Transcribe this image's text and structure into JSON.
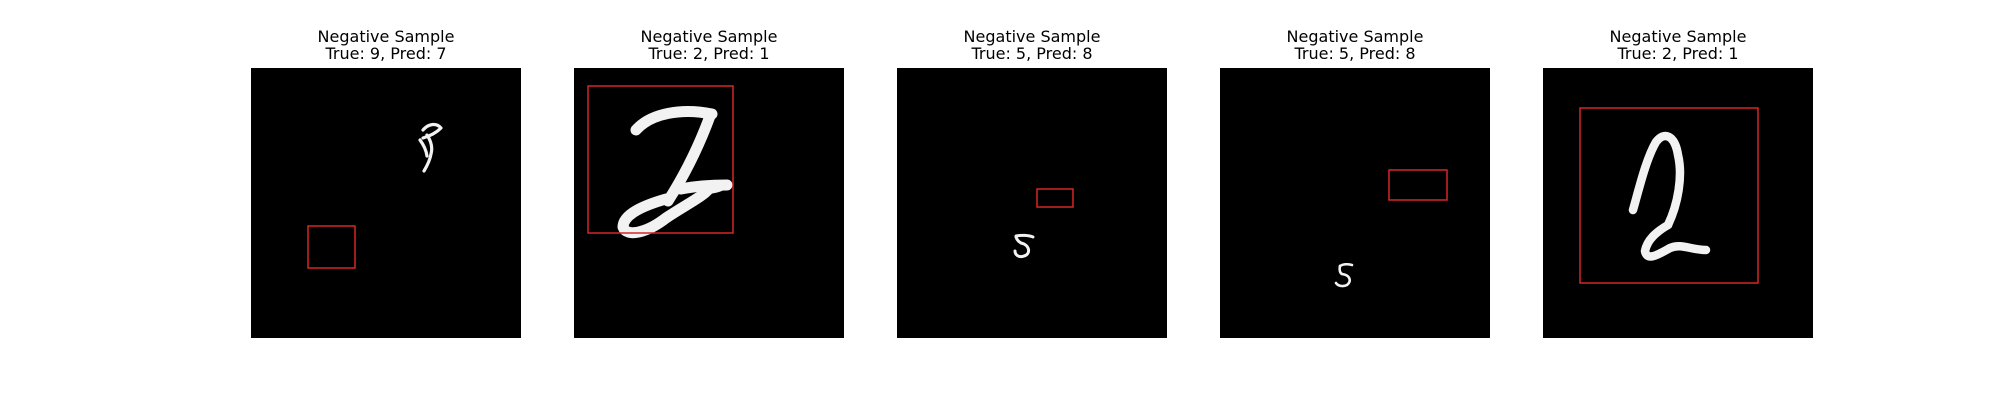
{
  "panels": [
    {
      "title_line1": "Negative Sample",
      "title_line2": "True: 9, Pred: 7",
      "digit": "9"
    },
    {
      "title_line1": "Negative Sample",
      "title_line2": "True: 2, Pred: 1",
      "digit": "2"
    },
    {
      "title_line1": "Negative Sample",
      "title_line2": "True: 5, Pred: 8",
      "digit": "5"
    },
    {
      "title_line1": "Negative Sample",
      "title_line2": "True: 5, Pred: 8",
      "digit": "5"
    },
    {
      "title_line1": "Negative Sample",
      "title_line2": "True: 2, Pred: 1",
      "digit": "2"
    }
  ],
  "colors": {
    "image_background": "#000000",
    "digit_stroke": "#ffffff",
    "box_stroke": "#d62728"
  }
}
